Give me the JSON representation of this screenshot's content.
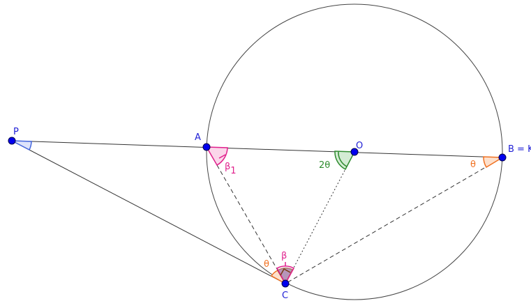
{
  "points": {
    "P": {
      "label": "P"
    },
    "A": {
      "label": "A"
    },
    "O": {
      "label": "O"
    },
    "B": {
      "label": "B = K"
    },
    "C": {
      "label": "C"
    }
  },
  "angle_labels": {
    "two_theta": "2θ",
    "beta1_main": "β",
    "beta1_sub": "1",
    "theta_at_B": "θ",
    "theta_at_C": "θ",
    "beta_at_C": "β"
  },
  "colors": {
    "point_fill": "#0000ee",
    "point_label": "#1f1fd6",
    "segment": "#333333",
    "circle": "#444444",
    "blue_angle": "#4466dd",
    "blue_angle_fill": "#dde3fb",
    "pink": "#e0208c",
    "pink_fill": "#fbd6ea",
    "green": "#2e8b2e",
    "green_fill": "#d4ecd4",
    "orange": "#f07020",
    "orange_fill": "#fde0cc",
    "brown": "#7a3a10",
    "dark_fill": "#8a6a9a"
  }
}
